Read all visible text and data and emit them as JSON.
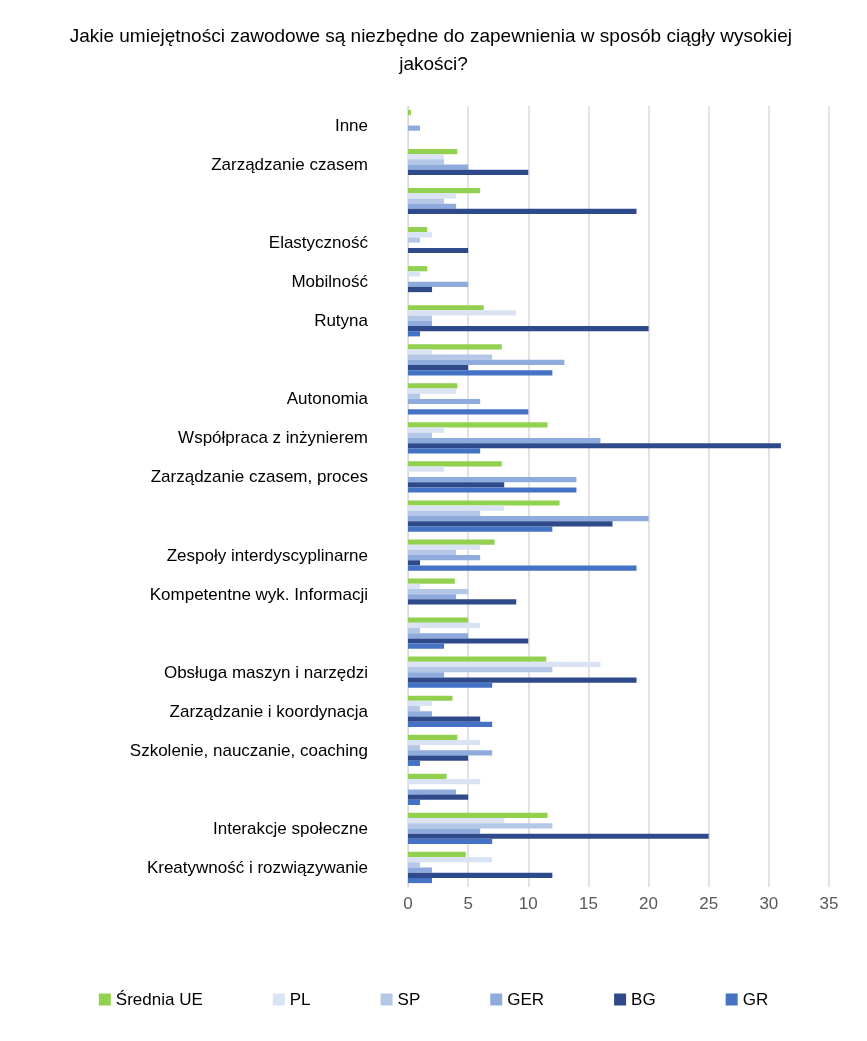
{
  "chart_data": {
    "type": "bar",
    "orientation": "horizontal",
    "title": "Jakie umiejętności zawodowe są niezbędne do zapewnienia w sposób ciągły wysokiej jakości?",
    "categories": [
      "Inne",
      "Zarządzanie czasem",
      null,
      "Elastyczność",
      "Mobilność",
      "Rutyna",
      null,
      "Autonomia",
      "Współpraca z inżynierem",
      "Zarządzanie czasem, proces",
      null,
      "Zespoły interdyscyplinarne",
      "Kompetentne wyk. Informacji",
      null,
      "Obsługa maszyn i narzędzi",
      "Zarządzanie i koordynacja",
      "Szkolenie, nauczanie, coaching",
      null,
      "Interakcje społeczne",
      "Kreatywność i rozwiązywanie"
    ],
    "series": [
      {
        "name": "Średnia UE",
        "color": "#92d050",
        "values": [
          0.25,
          4.1,
          6,
          1.6,
          1.6,
          6.3,
          7.8,
          4.1,
          11.6,
          7.8,
          12.6,
          7.2,
          3.9,
          5,
          11.5,
          3.7,
          4.1,
          3.2,
          11.6,
          4.8
        ]
      },
      {
        "name": "PL",
        "color": "#dae3f3",
        "values": [
          0,
          3,
          4,
          2,
          1,
          9,
          2,
          4,
          3,
          3,
          8,
          6,
          1,
          6,
          16,
          2,
          6,
          6,
          8,
          7
        ]
      },
      {
        "name": "SP",
        "color": "#b4c7e7",
        "values": [
          0,
          3,
          3,
          1,
          0,
          2,
          7,
          1,
          2,
          0,
          6,
          4,
          5,
          1,
          12,
          1,
          1,
          0,
          12,
          1
        ]
      },
      {
        "name": "GER",
        "color": "#8faadc",
        "values": [
          1,
          5,
          4,
          0,
          5,
          2,
          13,
          6,
          16,
          14,
          20,
          6,
          4,
          5,
          3,
          2,
          7,
          4,
          6,
          2
        ]
      },
      {
        "name": "BG",
        "color": "#2f4a8b",
        "values": [
          0,
          10,
          19,
          5,
          2,
          20,
          5,
          0,
          31,
          8,
          17,
          1,
          9,
          10,
          19,
          6,
          5,
          5,
          25,
          12
        ]
      },
      {
        "name": "GR",
        "color": "#4472c4",
        "values": [
          0,
          0,
          0,
          0,
          0,
          1,
          12,
          10,
          6,
          14,
          12,
          19,
          0,
          3,
          7,
          7,
          1,
          1,
          7,
          2
        ]
      }
    ],
    "xlim": [
      0,
      35
    ],
    "xticks": [
      0,
      5,
      10,
      15,
      20,
      25,
      30,
      35
    ],
    "grid": "x",
    "legend": "bottom"
  }
}
